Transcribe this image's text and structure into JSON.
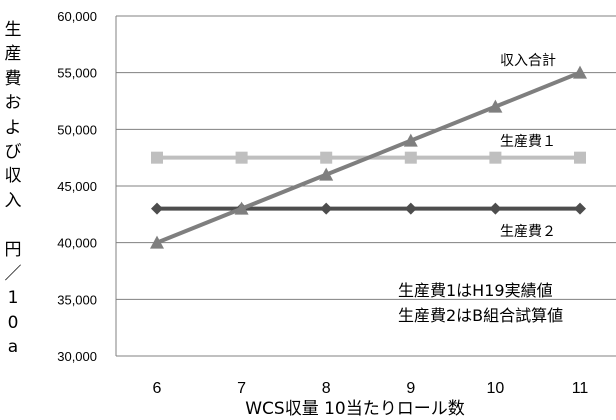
{
  "chart_data": {
    "type": "line",
    "xlabel": "WCS収量 10当たりロール数",
    "ylabel": "生産費および収入 円／10a",
    "x": [
      6,
      7,
      8,
      9,
      10,
      11
    ],
    "ylim": [
      30000,
      60000
    ],
    "yticks": [
      "30,000",
      "35,000",
      "40,000",
      "45,000",
      "50,000",
      "55,000",
      "60,000"
    ],
    "grid": true,
    "series": [
      {
        "name": "収入合計",
        "values": [
          40000,
          43000,
          46000,
          49000,
          52000,
          55000
        ],
        "marker": "triangle",
        "color": "#7f7f7f"
      },
      {
        "name": "生産費１",
        "values": [
          47500,
          47500,
          47500,
          47500,
          47500,
          47500
        ],
        "marker": "square",
        "color": "#bfbfbf"
      },
      {
        "name": "生産費２",
        "values": [
          43000,
          43000,
          43000,
          43000,
          43000,
          43000
        ],
        "marker": "diamond",
        "color": "#4d4d4d"
      }
    ],
    "annotations": [
      "生産費1はH19実績値",
      "生産費2はB組合試算値"
    ]
  }
}
